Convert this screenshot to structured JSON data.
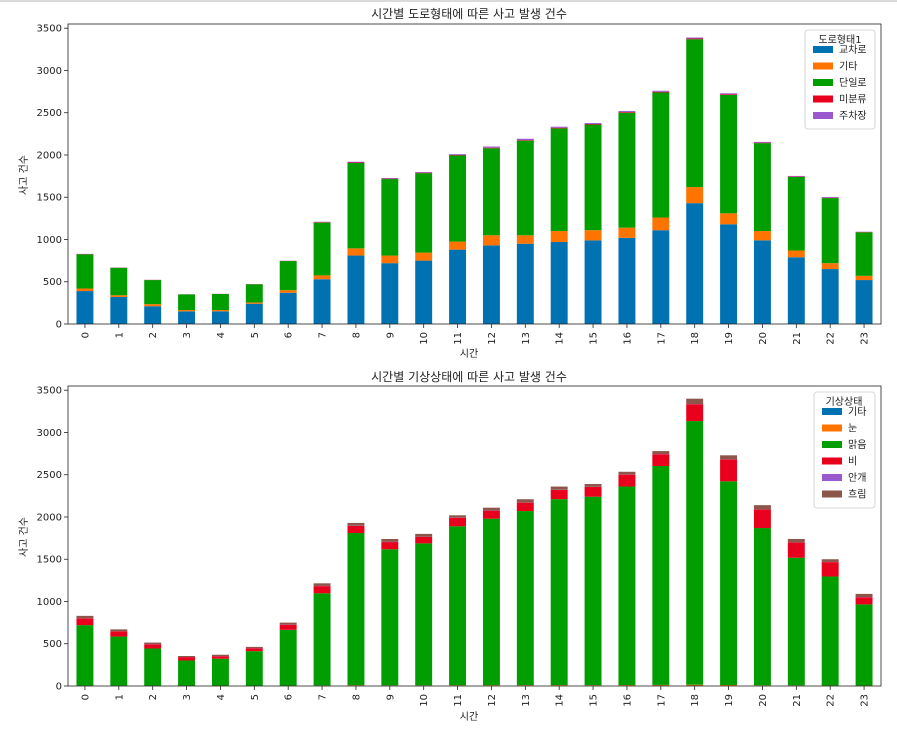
{
  "chart_data": [
    {
      "type": "bar",
      "stacked": true,
      "title": "시간별 도로형태에 따른 사고 발생 건수",
      "xlabel": "시간",
      "ylabel": "사고 건수",
      "ylim": [
        0,
        3550
      ],
      "yticks": [
        0,
        500,
        1000,
        1500,
        2000,
        2500,
        3000,
        3500
      ],
      "categories": [
        "0",
        "1",
        "2",
        "3",
        "4",
        "5",
        "6",
        "7",
        "8",
        "9",
        "10",
        "11",
        "12",
        "13",
        "14",
        "15",
        "16",
        "17",
        "18",
        "19",
        "20",
        "21",
        "22",
        "23"
      ],
      "legend_title": "도로형태1",
      "legend_position": "top-right",
      "series": [
        {
          "name": "교차로",
          "color": "#0072b2",
          "values": [
            390,
            320,
            210,
            150,
            150,
            240,
            370,
            530,
            810,
            720,
            750,
            880,
            930,
            950,
            970,
            990,
            1020,
            1110,
            1430,
            1180,
            990,
            790,
            650,
            520
          ]
        },
        {
          "name": "기타",
          "color": "#ff7400",
          "values": [
            30,
            20,
            25,
            15,
            15,
            15,
            30,
            45,
            85,
            90,
            95,
            95,
            120,
            100,
            130,
            120,
            120,
            150,
            190,
            130,
            110,
            80,
            70,
            50
          ]
        },
        {
          "name": "단일로",
          "color": "#009e00",
          "values": [
            405,
            325,
            285,
            185,
            190,
            215,
            345,
            625,
            1010,
            905,
            940,
            1020,
            1030,
            1120,
            1215,
            1250,
            1360,
            1480,
            1750,
            1400,
            1040,
            870,
            770,
            515
          ]
        },
        {
          "name": "미분류",
          "color": "#e8001c",
          "values": [
            3,
            2,
            2,
            1,
            1,
            2,
            2,
            5,
            6,
            5,
            5,
            5,
            6,
            6,
            7,
            7,
            8,
            8,
            8,
            8,
            6,
            4,
            4,
            3
          ]
        },
        {
          "name": "주차장",
          "color": "#9b59d0",
          "values": [
            2,
            2,
            1,
            1,
            1,
            1,
            2,
            5,
            9,
            8,
            9,
            10,
            14,
            16,
            13,
            11,
            12,
            12,
            12,
            12,
            9,
            8,
            9,
            4
          ]
        }
      ]
    },
    {
      "type": "bar",
      "stacked": true,
      "title": "시간별 기상상태에 따른 사고 발생 건수",
      "xlabel": "시간",
      "ylabel": "사고 건수",
      "ylim": [
        0,
        3550
      ],
      "yticks": [
        0,
        500,
        1000,
        1500,
        2000,
        2500,
        3000,
        3500
      ],
      "categories": [
        "0",
        "1",
        "2",
        "3",
        "4",
        "5",
        "6",
        "7",
        "8",
        "9",
        "10",
        "11",
        "12",
        "13",
        "14",
        "15",
        "16",
        "17",
        "18",
        "19",
        "20",
        "21",
        "22",
        "23"
      ],
      "legend_title": "기상상태",
      "legend_position": "top-right",
      "series": [
        {
          "name": "기타",
          "color": "#0072b2",
          "values": [
            2,
            2,
            2,
            1,
            1,
            1,
            2,
            3,
            4,
            3,
            3,
            4,
            4,
            4,
            4,
            4,
            4,
            5,
            5,
            4,
            3,
            3,
            2,
            2
          ]
        },
        {
          "name": "눈",
          "color": "#ff7400",
          "values": [
            3,
            3,
            2,
            1,
            2,
            1,
            3,
            4,
            6,
            5,
            5,
            6,
            6,
            6,
            7,
            6,
            7,
            8,
            10,
            8,
            6,
            5,
            4,
            4
          ]
        },
        {
          "name": "맑음",
          "color": "#009e00",
          "values": [
            715,
            580,
            440,
            300,
            320,
            410,
            660,
            1090,
            1800,
            1610,
            1680,
            1880,
            1970,
            2060,
            2200,
            2230,
            2350,
            2590,
            3120,
            2410,
            1860,
            1510,
            1290,
            960
          ]
        },
        {
          "name": "비",
          "color": "#e8001c",
          "values": [
            80,
            60,
            50,
            40,
            30,
            35,
            60,
            85,
            85,
            85,
            75,
            100,
            95,
            100,
            110,
            115,
            140,
            140,
            200,
            260,
            220,
            180,
            170,
            85
          ]
        },
        {
          "name": "안개",
          "color": "#9b59d0",
          "values": [
            2,
            2,
            2,
            1,
            2,
            1,
            2,
            2,
            2,
            2,
            2,
            2,
            2,
            2,
            2,
            2,
            2,
            2,
            2,
            2,
            2,
            2,
            2,
            2
          ]
        },
        {
          "name": "흐림",
          "color": "#8c564b",
          "values": [
            28,
            23,
            18,
            12,
            15,
            15,
            23,
            31,
            33,
            35,
            35,
            28,
            33,
            38,
            37,
            33,
            32,
            35,
            63,
            46,
            49,
            40,
            32,
            37
          ]
        }
      ]
    }
  ]
}
